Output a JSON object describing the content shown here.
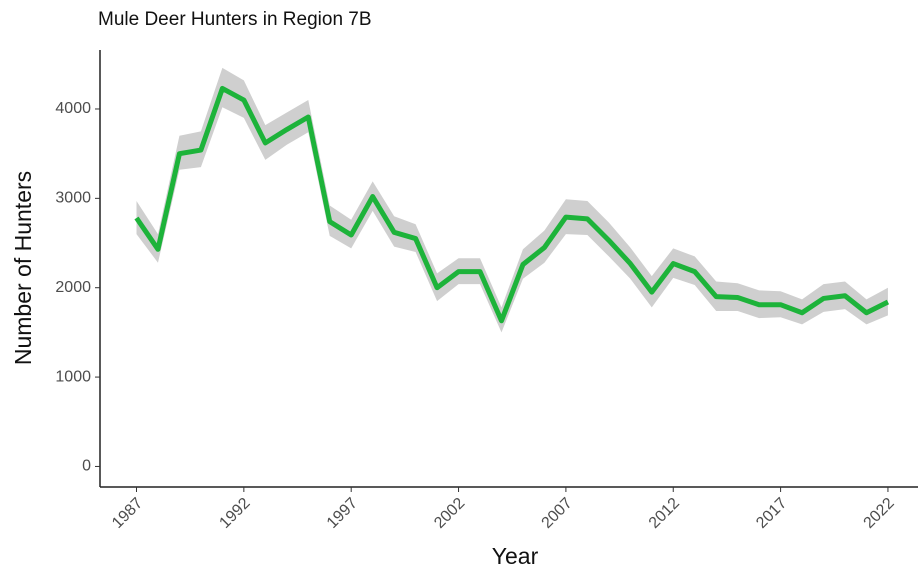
{
  "chart_data": {
    "type": "line",
    "title": "Mule Deer Hunters in Region 7B",
    "x_label": "Year",
    "y_label": "Number of Hunters",
    "x": [
      1987,
      1988,
      1989,
      1990,
      1991,
      1992,
      1993,
      1994,
      1995,
      1996,
      1997,
      1998,
      1999,
      2000,
      2001,
      2002,
      2003,
      2004,
      2005,
      2006,
      2007,
      2008,
      2009,
      2010,
      2011,
      2012,
      2013,
      2014,
      2015,
      2016,
      2017,
      2018,
      2019,
      2020,
      2021,
      2022
    ],
    "series": [
      {
        "name": "Number of Hunters",
        "color": "#1db33a",
        "values": [
          2780,
          2430,
          3500,
          3540,
          4230,
          4100,
          3620,
          3770,
          3910,
          2740,
          2590,
          3020,
          2620,
          2550,
          2000,
          2180,
          2180,
          1630,
          2260,
          2450,
          2790,
          2770,
          2530,
          2270,
          1950,
          2270,
          2180,
          1900,
          1890,
          1810,
          1810,
          1720,
          1880,
          1910,
          1720,
          1840
        ]
      }
    ],
    "band": {
      "color": "#cfcfcf",
      "lower": [
        2600,
        2280,
        3320,
        3350,
        4020,
        3900,
        3430,
        3600,
        3740,
        2580,
        2440,
        2860,
        2460,
        2400,
        1850,
        2040,
        2040,
        1500,
        2100,
        2280,
        2600,
        2590,
        2350,
        2100,
        1780,
        2110,
        2030,
        1740,
        1740,
        1660,
        1670,
        1590,
        1730,
        1760,
        1590,
        1690
      ],
      "upper": [
        2970,
        2600,
        3700,
        3750,
        4460,
        4320,
        3820,
        3960,
        4100,
        2920,
        2760,
        3190,
        2800,
        2710,
        2160,
        2330,
        2330,
        1780,
        2430,
        2640,
        2990,
        2970,
        2730,
        2450,
        2130,
        2440,
        2350,
        2070,
        2050,
        1970,
        1960,
        1870,
        2040,
        2070,
        1870,
        2000
      ]
    },
    "xlim": [
      1985.3,
      2023.4
    ],
    "ylim": [
      -230,
      4660
    ],
    "xticks": [
      1987,
      1992,
      1997,
      2002,
      2007,
      2012,
      2017,
      2022
    ],
    "yticks": [
      0,
      1000,
      2000,
      3000,
      4000
    ],
    "grid": false
  }
}
